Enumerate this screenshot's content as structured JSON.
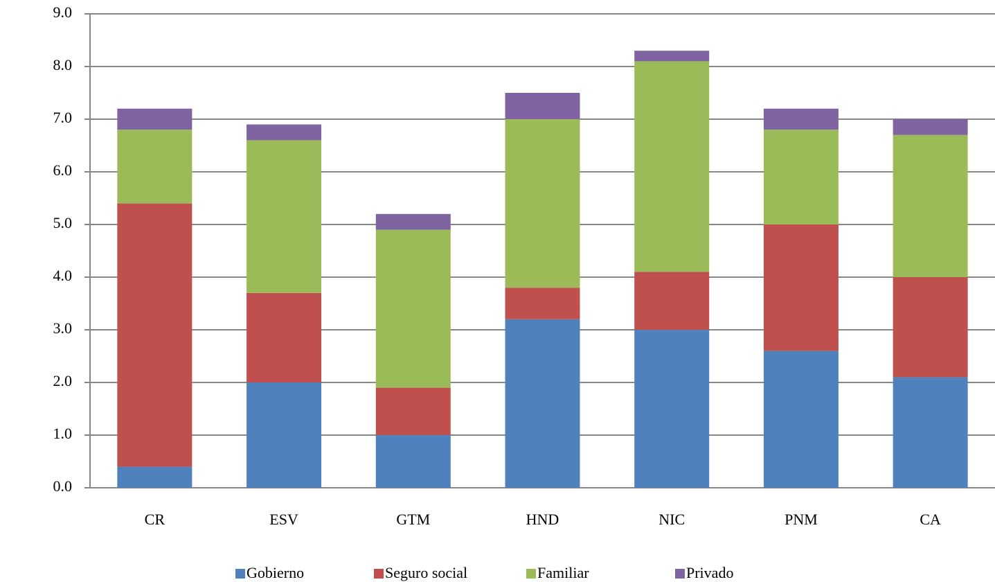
{
  "chart_data": {
    "type": "stacked_bar",
    "categories": [
      "CR",
      "ESV",
      "GTM",
      "HND",
      "NIC",
      "PNM",
      "CA"
    ],
    "series": [
      {
        "name": "Gobierno",
        "color": "#4f81bd",
        "values": [
          0.4,
          2.0,
          1.0,
          3.2,
          3.0,
          2.6,
          2.1
        ]
      },
      {
        "name": "Seguro social",
        "color": "#c0504d",
        "values": [
          5.0,
          1.7,
          0.9,
          0.6,
          1.1,
          2.4,
          1.9
        ]
      },
      {
        "name": "Familiar",
        "color": "#9bbb59",
        "values": [
          1.4,
          2.9,
          3.0,
          3.2,
          4.0,
          1.8,
          2.7
        ]
      },
      {
        "name": "Privado",
        "color": "#8064a2",
        "values": [
          0.4,
          0.3,
          0.3,
          0.5,
          0.2,
          0.4,
          0.3
        ]
      }
    ],
    "ylim": [
      0,
      9
    ],
    "yticks": [
      {
        "value": 0,
        "label": "0.0"
      },
      {
        "value": 1,
        "label": "1.0"
      },
      {
        "value": 2,
        "label": "2.0"
      },
      {
        "value": 3,
        "label": "3.0"
      },
      {
        "value": 4,
        "label": "4.0"
      },
      {
        "value": 5,
        "label": "5.0"
      },
      {
        "value": 6,
        "label": "6.0"
      },
      {
        "value": 7,
        "label": "7.0"
      },
      {
        "value": 8,
        "label": "8.0"
      },
      {
        "value": 9,
        "label": "9.0"
      }
    ],
    "grid": true,
    "legend": "bottom"
  }
}
